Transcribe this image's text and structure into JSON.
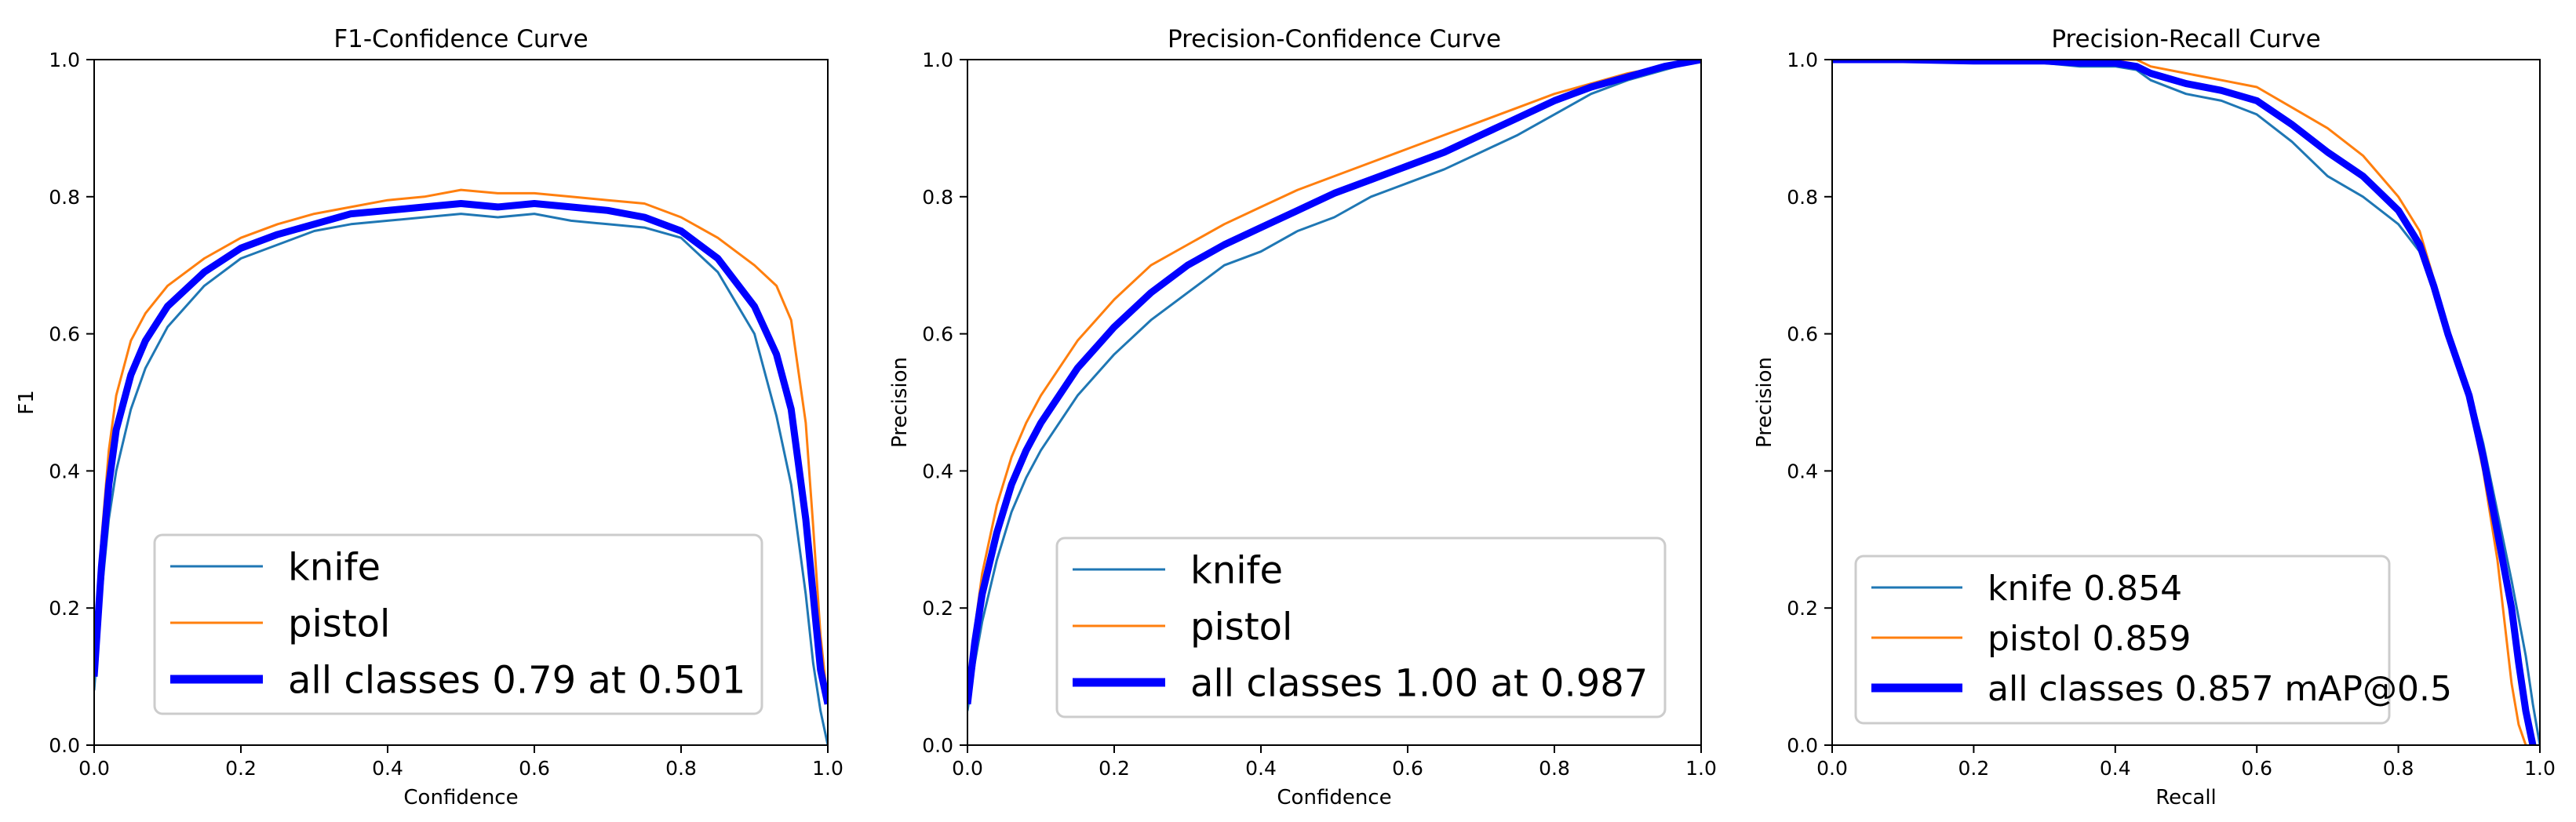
{
  "chart_data": [
    {
      "type": "line",
      "title": "F1-Confidence Curve",
      "xlabel": "Confidence",
      "ylabel": "F1",
      "xlim": [
        0.0,
        1.0
      ],
      "ylim": [
        0.0,
        1.0
      ],
      "xticks": [
        "0.0",
        "0.2",
        "0.4",
        "0.6",
        "0.8",
        "1.0"
      ],
      "yticks": [
        "0.0",
        "0.2",
        "0.4",
        "0.6",
        "0.8",
        "1.0"
      ],
      "legend_position": "lower-center",
      "legend_font": "large",
      "series": [
        {
          "name": "knife",
          "color": "#1f77b4",
          "width": "thin",
          "x": [
            0.0,
            0.01,
            0.02,
            0.03,
            0.05,
            0.07,
            0.1,
            0.15,
            0.2,
            0.25,
            0.3,
            0.35,
            0.4,
            0.45,
            0.5,
            0.55,
            0.6,
            0.65,
            0.7,
            0.75,
            0.8,
            0.85,
            0.9,
            0.93,
            0.95,
            0.97,
            0.98,
            0.99,
            1.0
          ],
          "y": [
            0.08,
            0.22,
            0.33,
            0.4,
            0.49,
            0.55,
            0.61,
            0.67,
            0.71,
            0.73,
            0.75,
            0.76,
            0.765,
            0.77,
            0.775,
            0.77,
            0.775,
            0.765,
            0.76,
            0.755,
            0.74,
            0.69,
            0.6,
            0.48,
            0.38,
            0.22,
            0.12,
            0.05,
            0.0
          ]
        },
        {
          "name": "pistol",
          "color": "#ff7f0e",
          "width": "thin",
          "x": [
            0.0,
            0.01,
            0.02,
            0.03,
            0.05,
            0.07,
            0.1,
            0.15,
            0.2,
            0.25,
            0.3,
            0.35,
            0.4,
            0.45,
            0.5,
            0.55,
            0.6,
            0.65,
            0.7,
            0.75,
            0.8,
            0.85,
            0.9,
            0.93,
            0.95,
            0.97,
            0.98,
            0.99,
            1.0
          ],
          "y": [
            0.11,
            0.3,
            0.43,
            0.51,
            0.59,
            0.63,
            0.67,
            0.71,
            0.74,
            0.76,
            0.775,
            0.785,
            0.795,
            0.8,
            0.81,
            0.805,
            0.805,
            0.8,
            0.795,
            0.79,
            0.77,
            0.74,
            0.7,
            0.67,
            0.62,
            0.47,
            0.32,
            0.16,
            0.06
          ]
        },
        {
          "name": "all classes 0.79 at 0.501",
          "color": "#0000ff",
          "width": "thick",
          "x": [
            0.0,
            0.01,
            0.02,
            0.03,
            0.05,
            0.07,
            0.1,
            0.15,
            0.2,
            0.25,
            0.3,
            0.35,
            0.4,
            0.45,
            0.5,
            0.55,
            0.6,
            0.65,
            0.7,
            0.75,
            0.8,
            0.85,
            0.9,
            0.93,
            0.95,
            0.97,
            0.98,
            0.99,
            1.0
          ],
          "y": [
            0.1,
            0.26,
            0.38,
            0.46,
            0.54,
            0.59,
            0.64,
            0.69,
            0.725,
            0.745,
            0.76,
            0.775,
            0.78,
            0.785,
            0.79,
            0.785,
            0.79,
            0.785,
            0.78,
            0.77,
            0.75,
            0.71,
            0.64,
            0.57,
            0.49,
            0.33,
            0.22,
            0.11,
            0.06
          ]
        }
      ]
    },
    {
      "type": "line",
      "title": "Precision-Confidence Curve",
      "xlabel": "Confidence",
      "ylabel": "Precision",
      "xlim": [
        0.0,
        1.0
      ],
      "ylim": [
        0.0,
        1.0
      ],
      "xticks": [
        "0.0",
        "0.2",
        "0.4",
        "0.6",
        "0.8",
        "1.0"
      ],
      "yticks": [
        "0.0",
        "0.2",
        "0.4",
        "0.6",
        "0.8",
        "1.0"
      ],
      "legend_position": "lower-center",
      "legend_font": "large",
      "series": [
        {
          "name": "knife",
          "color": "#1f77b4",
          "width": "thin",
          "x": [
            0.0,
            0.01,
            0.02,
            0.04,
            0.06,
            0.08,
            0.1,
            0.15,
            0.2,
            0.25,
            0.3,
            0.35,
            0.4,
            0.45,
            0.5,
            0.55,
            0.6,
            0.65,
            0.7,
            0.75,
            0.8,
            0.85,
            0.9,
            0.95,
            1.0
          ],
          "y": [
            0.05,
            0.12,
            0.18,
            0.27,
            0.34,
            0.39,
            0.43,
            0.51,
            0.57,
            0.62,
            0.66,
            0.7,
            0.72,
            0.75,
            0.77,
            0.8,
            0.82,
            0.84,
            0.865,
            0.89,
            0.92,
            0.95,
            0.97,
            0.985,
            1.0
          ]
        },
        {
          "name": "pistol",
          "color": "#ff7f0e",
          "width": "thin",
          "x": [
            0.0,
            0.01,
            0.02,
            0.04,
            0.06,
            0.08,
            0.1,
            0.15,
            0.2,
            0.25,
            0.3,
            0.35,
            0.4,
            0.45,
            0.5,
            0.55,
            0.6,
            0.65,
            0.7,
            0.75,
            0.8,
            0.85,
            0.9,
            0.95,
            1.0
          ],
          "y": [
            0.07,
            0.17,
            0.25,
            0.35,
            0.42,
            0.47,
            0.51,
            0.59,
            0.65,
            0.7,
            0.73,
            0.76,
            0.785,
            0.81,
            0.83,
            0.85,
            0.87,
            0.89,
            0.91,
            0.93,
            0.95,
            0.965,
            0.98,
            0.99,
            1.0
          ]
        },
        {
          "name": "all classes 1.00 at 0.987",
          "color": "#0000ff",
          "width": "thick",
          "x": [
            0.0,
            0.01,
            0.02,
            0.04,
            0.06,
            0.08,
            0.1,
            0.15,
            0.2,
            0.25,
            0.3,
            0.35,
            0.4,
            0.45,
            0.5,
            0.55,
            0.6,
            0.65,
            0.7,
            0.75,
            0.8,
            0.85,
            0.9,
            0.95,
            1.0
          ],
          "y": [
            0.06,
            0.15,
            0.22,
            0.31,
            0.38,
            0.43,
            0.47,
            0.55,
            0.61,
            0.66,
            0.7,
            0.73,
            0.755,
            0.78,
            0.805,
            0.825,
            0.845,
            0.865,
            0.89,
            0.915,
            0.94,
            0.96,
            0.975,
            0.99,
            1.0
          ]
        }
      ]
    },
    {
      "type": "line",
      "title": "Precision-Recall Curve",
      "xlabel": "Recall",
      "ylabel": "Precision",
      "xlim": [
        0.0,
        1.0
      ],
      "ylim": [
        0.0,
        1.0
      ],
      "xticks": [
        "0.0",
        "0.2",
        "0.4",
        "0.6",
        "0.8",
        "1.0"
      ],
      "yticks": [
        "0.0",
        "0.2",
        "0.4",
        "0.6",
        "0.8",
        "1.0"
      ],
      "legend_position": "lower-left",
      "legend_font": "medium",
      "series": [
        {
          "name": "knife 0.854",
          "color": "#1f77b4",
          "width": "thin",
          "x": [
            0.0,
            0.1,
            0.2,
            0.3,
            0.35,
            0.4,
            0.43,
            0.45,
            0.5,
            0.55,
            0.6,
            0.65,
            0.7,
            0.75,
            0.8,
            0.83,
            0.85,
            0.87,
            0.9,
            0.92,
            0.94,
            0.96,
            0.98,
            0.99,
            1.0
          ],
          "y": [
            1.0,
            1.0,
            0.995,
            0.995,
            0.99,
            0.99,
            0.985,
            0.97,
            0.95,
            0.94,
            0.92,
            0.88,
            0.83,
            0.8,
            0.76,
            0.72,
            0.66,
            0.6,
            0.52,
            0.44,
            0.34,
            0.24,
            0.13,
            0.06,
            0.0
          ]
        },
        {
          "name": "pistol 0.859",
          "color": "#ff7f0e",
          "width": "thin",
          "x": [
            0.0,
            0.1,
            0.2,
            0.3,
            0.35,
            0.4,
            0.43,
            0.45,
            0.5,
            0.55,
            0.6,
            0.65,
            0.7,
            0.75,
            0.8,
            0.83,
            0.85,
            0.87,
            0.9,
            0.92,
            0.94,
            0.95,
            0.96,
            0.97,
            0.98
          ],
          "y": [
            1.0,
            1.0,
            1.0,
            1.0,
            1.0,
            1.0,
            1.0,
            0.99,
            0.98,
            0.97,
            0.96,
            0.93,
            0.9,
            0.86,
            0.8,
            0.75,
            0.68,
            0.6,
            0.5,
            0.4,
            0.27,
            0.18,
            0.09,
            0.03,
            0.0
          ]
        },
        {
          "name": "all classes 0.857 mAP@0.5",
          "color": "#0000ff",
          "width": "thick",
          "x": [
            0.0,
            0.1,
            0.2,
            0.3,
            0.35,
            0.4,
            0.43,
            0.45,
            0.5,
            0.55,
            0.6,
            0.65,
            0.7,
            0.75,
            0.8,
            0.83,
            0.85,
            0.87,
            0.9,
            0.92,
            0.94,
            0.96,
            0.97,
            0.98,
            0.99
          ],
          "y": [
            1.0,
            1.0,
            0.998,
            0.998,
            0.995,
            0.995,
            0.99,
            0.98,
            0.965,
            0.955,
            0.94,
            0.905,
            0.865,
            0.83,
            0.78,
            0.73,
            0.67,
            0.6,
            0.51,
            0.42,
            0.31,
            0.2,
            0.12,
            0.05,
            0.0
          ]
        }
      ]
    }
  ]
}
